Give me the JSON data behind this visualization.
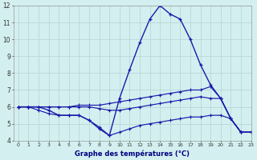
{
  "xlabel": "Graphe des températures (°C)",
  "bg_color": "#d4efef",
  "grid_color": "#b8d8d8",
  "line_color": "#1a1aaa",
  "hours": [
    0,
    1,
    2,
    3,
    4,
    5,
    6,
    7,
    8,
    9,
    10,
    11,
    12,
    13,
    14,
    15,
    16,
    17,
    18,
    19,
    20,
    21,
    22,
    23
  ],
  "temp_main": [
    6.0,
    6.0,
    6.0,
    5.8,
    5.5,
    5.5,
    5.5,
    5.2,
    4.7,
    4.3,
    6.5,
    8.2,
    9.8,
    11.2,
    12.0,
    11.5,
    11.2,
    10.0,
    8.5,
    7.3,
    6.5,
    5.3,
    4.5,
    4.5
  ],
  "temp_high": [
    6.0,
    6.0,
    6.0,
    6.0,
    6.0,
    6.0,
    6.1,
    6.1,
    6.1,
    6.2,
    6.3,
    6.4,
    6.5,
    6.6,
    6.7,
    6.8,
    6.9,
    7.0,
    7.0,
    7.2,
    6.5,
    5.3,
    4.5,
    4.5
  ],
  "temp_mean": [
    6.0,
    6.0,
    6.0,
    6.0,
    6.0,
    6.0,
    6.0,
    6.0,
    5.9,
    5.8,
    5.8,
    5.9,
    6.0,
    6.1,
    6.2,
    6.3,
    6.4,
    6.5,
    6.6,
    6.5,
    6.5,
    5.3,
    4.5,
    4.5
  ],
  "temp_low": [
    6.0,
    6.0,
    5.8,
    5.6,
    5.5,
    5.5,
    5.5,
    5.2,
    4.8,
    4.3,
    4.5,
    4.7,
    4.9,
    5.0,
    5.1,
    5.2,
    5.3,
    5.4,
    5.4,
    5.5,
    5.5,
    5.3,
    4.5,
    4.5
  ],
  "ylim": [
    4,
    12
  ],
  "yticks": [
    4,
    5,
    6,
    7,
    8,
    9,
    10,
    11,
    12
  ],
  "xlim": [
    -0.5,
    23
  ]
}
